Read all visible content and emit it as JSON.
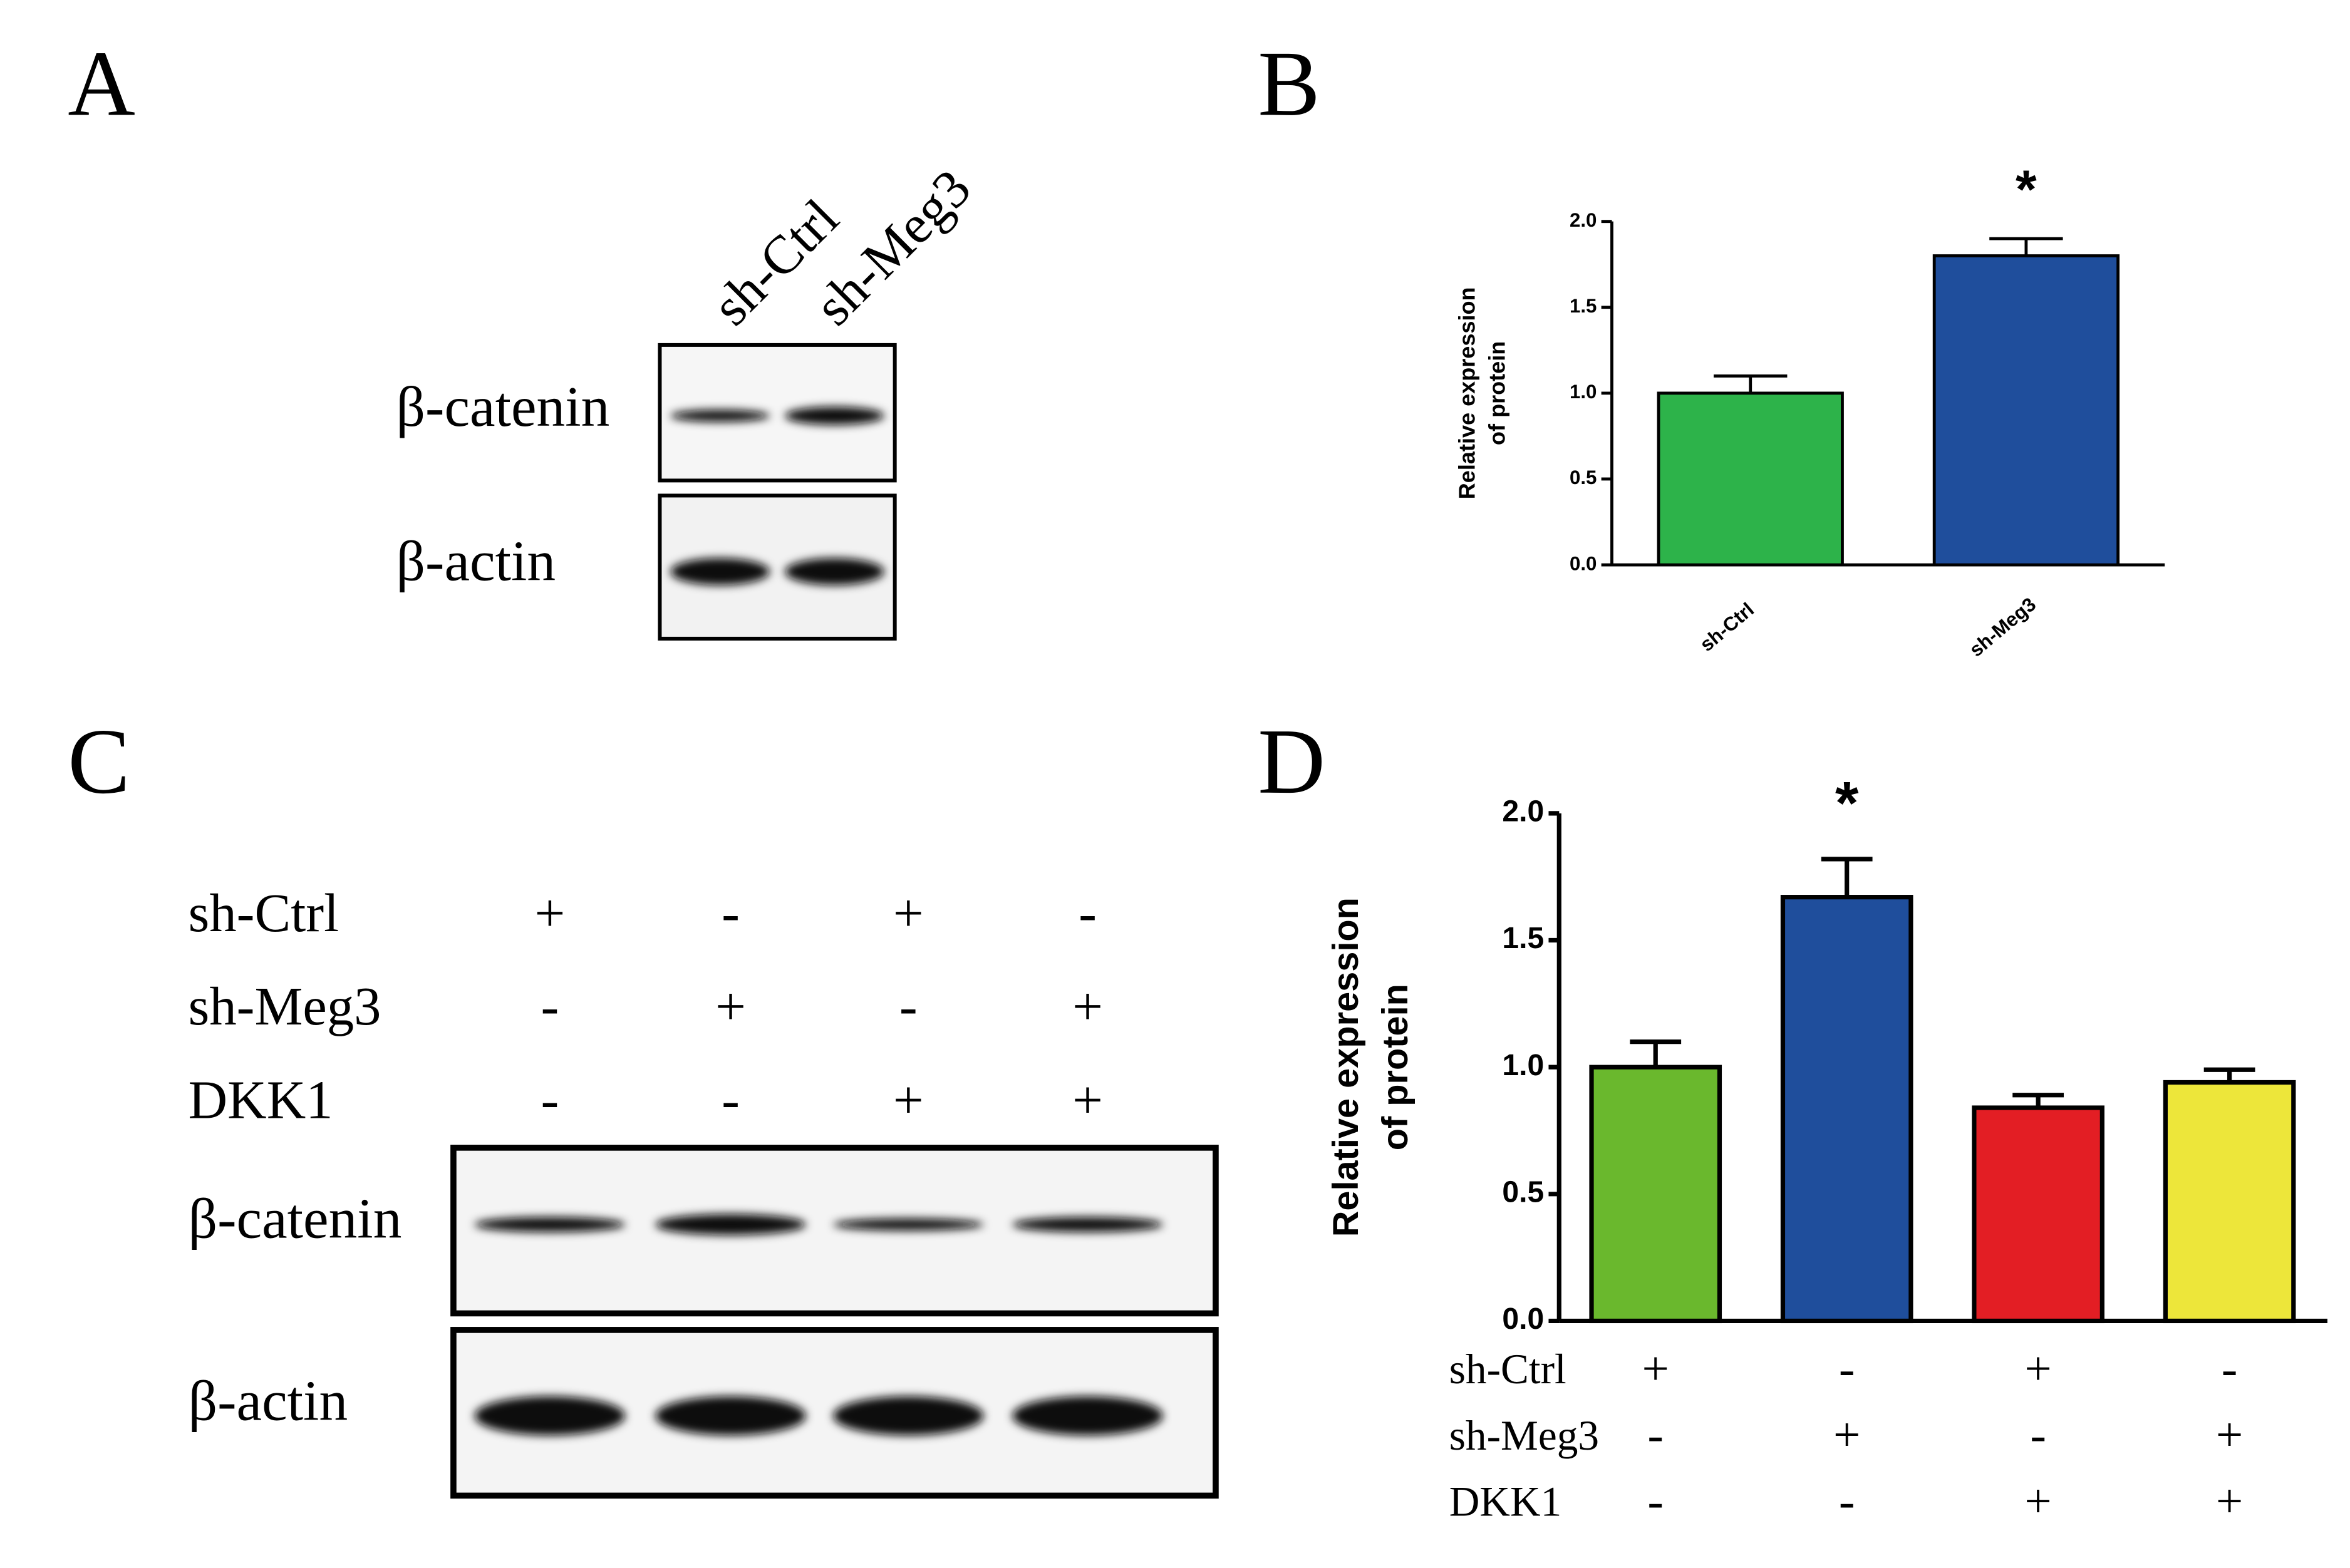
{
  "panel_labels": [
    "A",
    "B",
    "C",
    "D"
  ],
  "blot_a": {
    "lanes": [
      "sh-Ctrl",
      "sh-Meg3"
    ],
    "rows": [
      "β-catenin",
      "β-actin"
    ]
  },
  "blot_c": {
    "conditions": [
      {
        "name": "sh-Ctrl",
        "signs": [
          "+",
          "-",
          "+",
          "-"
        ]
      },
      {
        "name": "sh-Meg3",
        "signs": [
          "-",
          "+",
          "-",
          "+"
        ]
      },
      {
        "name": "DKK1",
        "signs": [
          "-",
          "-",
          "+",
          "+"
        ]
      }
    ],
    "rows": [
      "β-catenin",
      "β-actin"
    ]
  },
  "chart_data": [
    {
      "type": "bar",
      "y_label": [
        "Relative expression",
        "of protein"
      ],
      "categories": [
        "sh-Ctrl",
        "sh-Meg3"
      ],
      "values": [
        1.0,
        1.8
      ],
      "errors": [
        0.1,
        0.1
      ],
      "colors": [
        "#2db34a",
        "#1f4e9c"
      ],
      "significance": [
        null,
        "*"
      ],
      "ylim": [
        0,
        2
      ],
      "yticks": [
        {
          "value": 0,
          "label": "0.0"
        },
        {
          "value": 0.5,
          "label": "0.5"
        },
        {
          "value": 1,
          "label": "1.0"
        },
        {
          "value": 1.5,
          "label": "1.5"
        },
        {
          "value": 2,
          "label": "2.0"
        }
      ]
    },
    {
      "type": "bar",
      "y_label": [
        "Relative expression",
        "of protein"
      ],
      "conditions": [
        {
          "name": "sh-Ctrl",
          "signs": [
            "+",
            "-",
            "+",
            "-"
          ]
        },
        {
          "name": "sh-Meg3",
          "signs": [
            "-",
            "+",
            "-",
            "+"
          ]
        },
        {
          "name": "DKK1",
          "signs": [
            "-",
            "-",
            "+",
            "+"
          ]
        }
      ],
      "values": [
        1.0,
        1.67,
        0.84,
        0.94
      ],
      "errors": [
        0.1,
        0.15,
        0.05,
        0.05
      ],
      "colors": [
        "#6ab82d",
        "#1f4e9c",
        "#e31e24",
        "#ede63a"
      ],
      "significance": [
        null,
        "*",
        null,
        null
      ],
      "ylim": [
        0,
        2
      ],
      "yticks": [
        {
          "value": 0,
          "label": "0.0"
        },
        {
          "value": 0.5,
          "label": "0.5"
        },
        {
          "value": 1,
          "label": "1.0"
        },
        {
          "value": 1.5,
          "label": "1.5"
        },
        {
          "value": 2,
          "label": "2.0"
        }
      ]
    }
  ]
}
